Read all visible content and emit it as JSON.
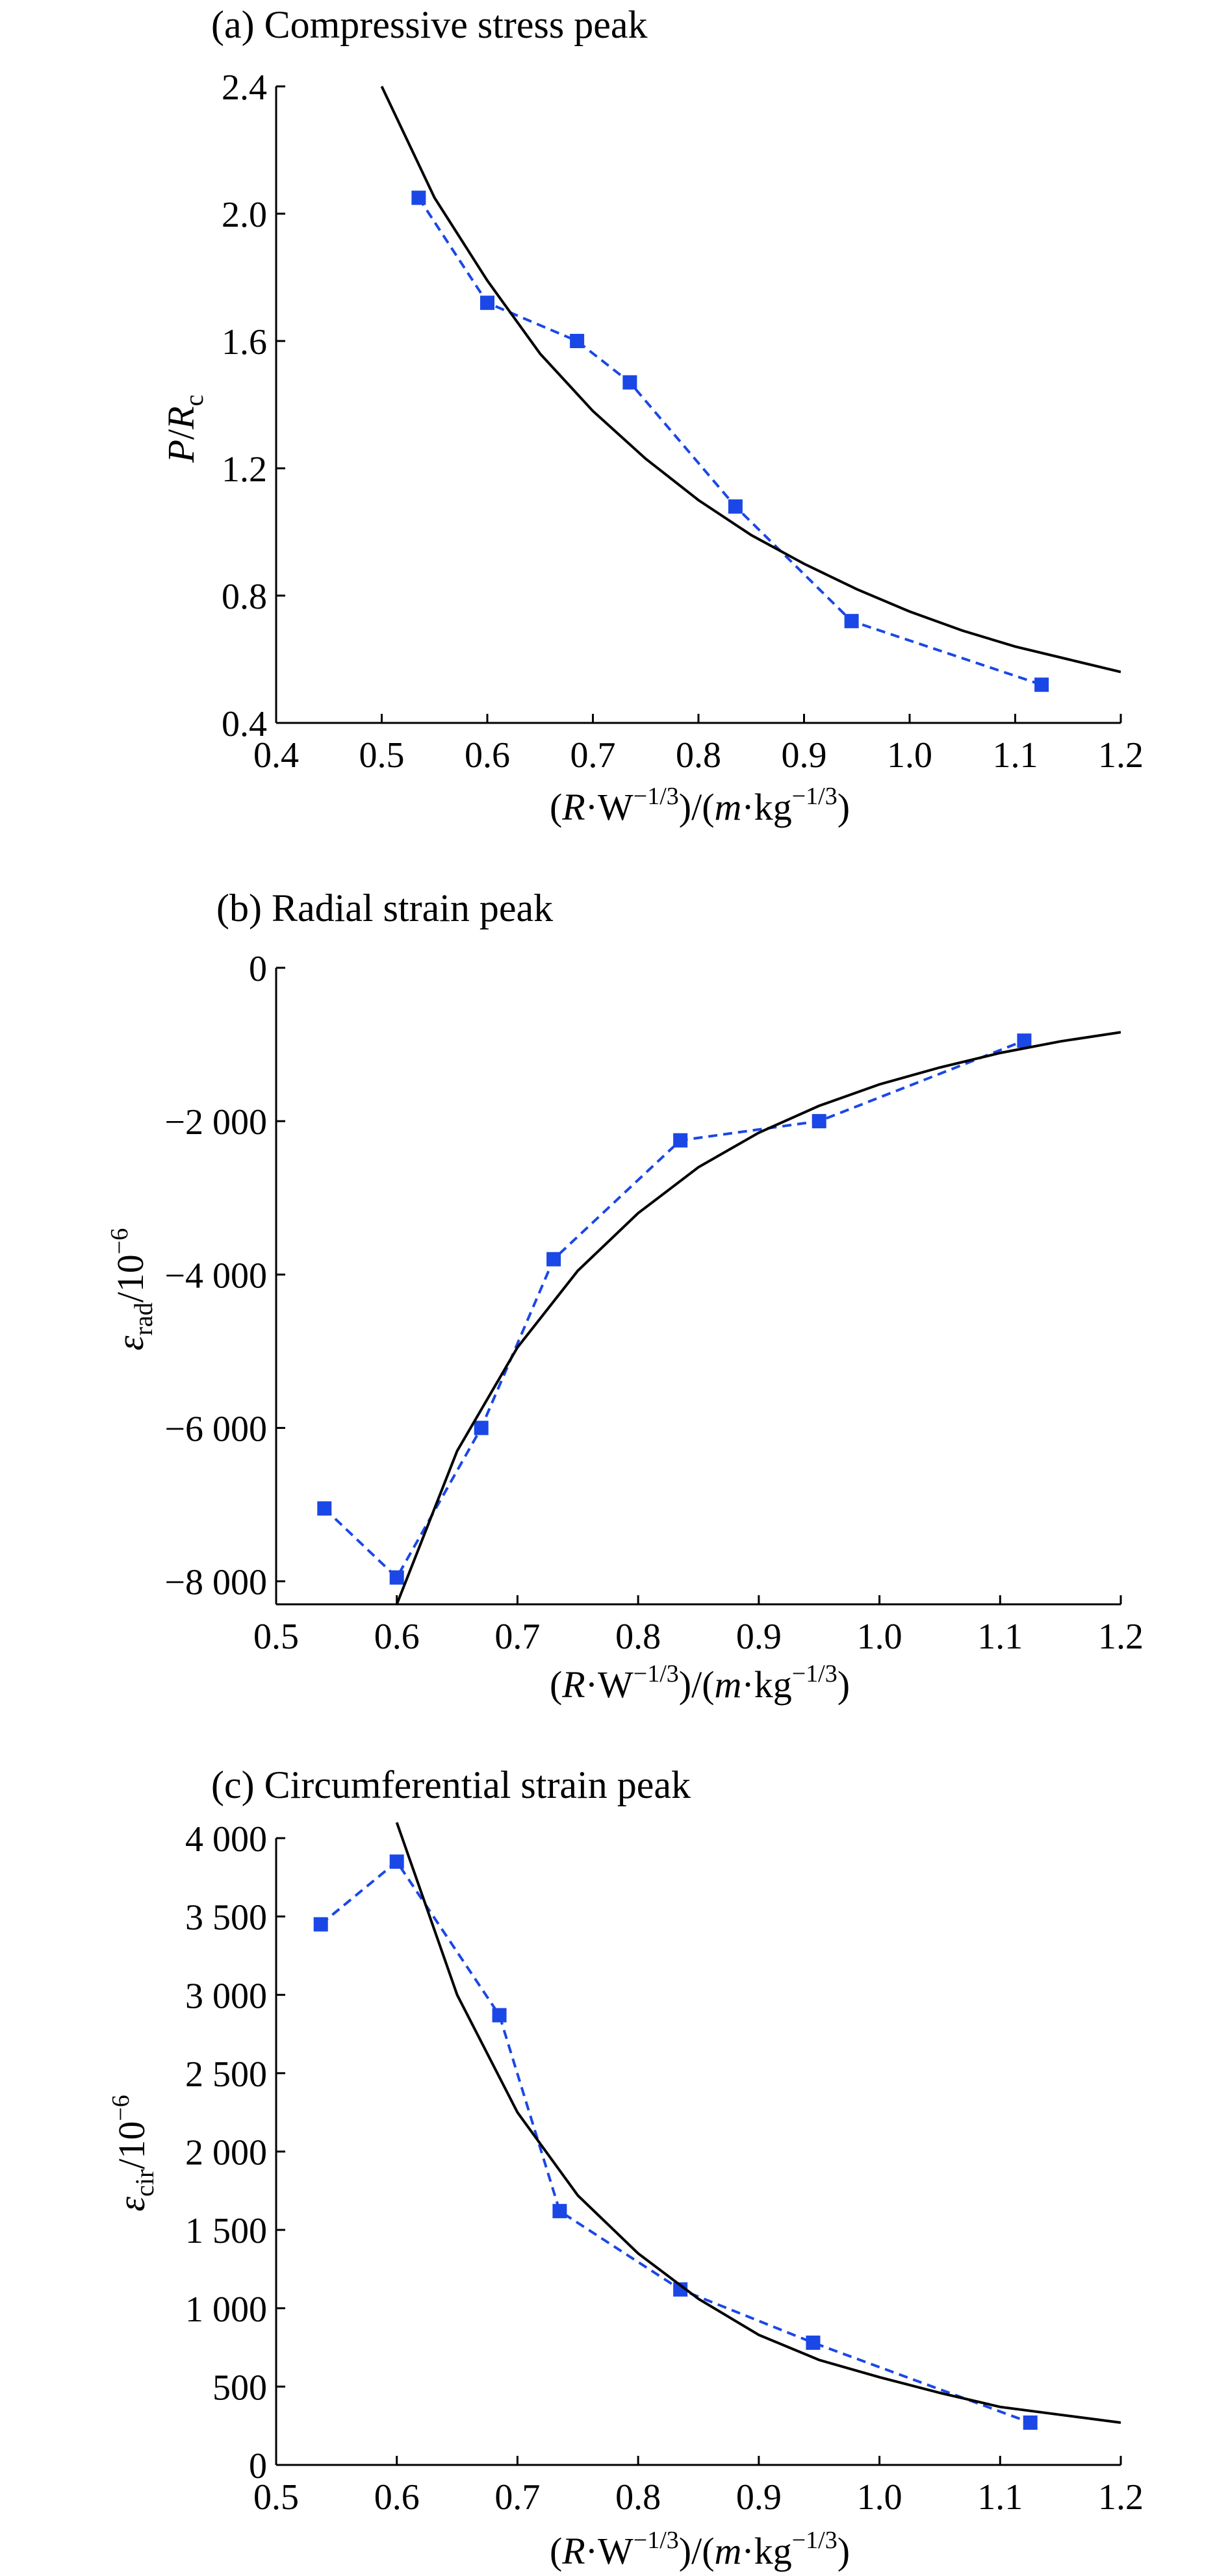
{
  "chart_data": [
    {
      "type": "line",
      "title": "(a) Compressive stress peak",
      "xlabel": "(R·W^−1/3)/(m·kg^−1/3)",
      "ylabel": "P/R_c",
      "xlim": [
        0.4,
        1.2
      ],
      "ylim": [
        0.4,
        2.4
      ],
      "x_ticks": [
        "0.4",
        "0.5",
        "0.6",
        "0.7",
        "0.8",
        "0.9",
        "1.0",
        "1.1",
        "1.2"
      ],
      "y_ticks": [
        "0.4",
        "0.8",
        "1.2",
        "1.6",
        "2.0",
        "2.4"
      ],
      "grid": false,
      "series": [
        {
          "style": "dashed-squares",
          "color": "#1a47e6",
          "x": [
            0.535,
            0.6,
            0.685,
            0.735,
            0.835,
            0.945,
            1.125
          ],
          "y": [
            2.05,
            1.72,
            1.6,
            1.47,
            1.08,
            0.72,
            0.52
          ]
        },
        {
          "style": "solid-fit",
          "color": "#000000",
          "x": [
            0.5,
            0.55,
            0.6,
            0.65,
            0.7,
            0.75,
            0.8,
            0.85,
            0.9,
            0.95,
            1.0,
            1.05,
            1.1,
            1.15,
            1.2
          ],
          "y": [
            2.4,
            2.05,
            1.79,
            1.56,
            1.38,
            1.23,
            1.1,
            0.99,
            0.9,
            0.82,
            0.75,
            0.69,
            0.64,
            0.6,
            0.56
          ]
        }
      ]
    },
    {
      "type": "line",
      "title": "(b) Radial strain peak",
      "xlabel": "(R·W^−1/3)/(m·kg^−1/3)",
      "ylabel": "ε_rad/10^−6",
      "xlim": [
        0.5,
        1.2
      ],
      "ylim": [
        -8300,
        0
      ],
      "x_ticks": [
        "0.5",
        "0.6",
        "0.7",
        "0.8",
        "0.9",
        "1.0",
        "1.1",
        "1.2"
      ],
      "y_ticks": [
        "−8 000",
        "−6 000",
        "−4 000",
        "−2 000",
        "0"
      ],
      "grid": false,
      "series": [
        {
          "style": "dashed-squares",
          "color": "#1a47e6",
          "x": [
            0.54,
            0.6,
            0.67,
            0.73,
            0.835,
            0.95,
            1.12
          ],
          "y": [
            -7050,
            -7950,
            -6000,
            -3800,
            -2250,
            -2000,
            -950
          ]
        },
        {
          "style": "solid-fit",
          "color": "#000000",
          "x": [
            0.6,
            0.65,
            0.7,
            0.75,
            0.8,
            0.85,
            0.9,
            0.95,
            1.0,
            1.05,
            1.1,
            1.15,
            1.2
          ],
          "y": [
            -8300,
            -6300,
            -4950,
            -3950,
            -3200,
            -2600,
            -2150,
            -1800,
            -1520,
            -1300,
            -1110,
            -960,
            -840
          ]
        }
      ]
    },
    {
      "type": "line",
      "title": "(c) Circumferential strain peak",
      "xlabel": "(R·W^−1/3)/(m·kg^−1/3)",
      "ylabel": "ε_cir/10^−6",
      "xlim": [
        0.5,
        1.2
      ],
      "ylim": [
        0,
        4000
      ],
      "x_ticks": [
        "0.5",
        "0.6",
        "0.7",
        "0.8",
        "0.9",
        "1.0",
        "1.1",
        "1.2"
      ],
      "y_ticks": [
        "0",
        "500",
        "1 000",
        "1 500",
        "2 000",
        "2 500",
        "3 000",
        "3 500",
        "4 000"
      ],
      "grid": false,
      "series": [
        {
          "style": "dashed-squares",
          "color": "#1a47e6",
          "x": [
            0.537,
            0.6,
            0.685,
            0.735,
            0.835,
            0.945,
            1.125
          ],
          "y": [
            3450,
            3850,
            2870,
            1620,
            1120,
            780,
            270
          ]
        },
        {
          "style": "solid-fit",
          "color": "#000000",
          "x": [
            0.6,
            0.65,
            0.7,
            0.75,
            0.8,
            0.85,
            0.9,
            0.95,
            1.0,
            1.05,
            1.1,
            1.15,
            1.2
          ],
          "y": [
            4100,
            3000,
            2250,
            1720,
            1350,
            1060,
            830,
            670,
            560,
            460,
            370,
            320,
            270
          ]
        }
      ]
    }
  ]
}
